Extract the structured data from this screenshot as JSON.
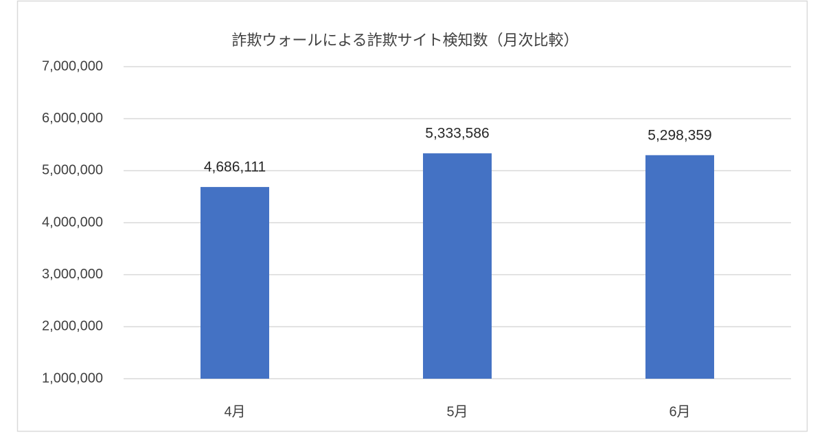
{
  "chart_data": {
    "type": "bar",
    "title": "詐欺ウォールによる詐欺サイト検知数（月次比較）",
    "categories": [
      "4月",
      "5月",
      "6月"
    ],
    "values": [
      4686111,
      5333586,
      5298359
    ],
    "value_labels": [
      "4,686,111",
      "5,333,586",
      "5,298,359"
    ],
    "color": "#4472c4",
    "ylim": [
      1000000,
      7000000
    ],
    "yticks": [
      {
        "value": 1000000,
        "label": "1,000,000"
      },
      {
        "value": 2000000,
        "label": "2,000,000"
      },
      {
        "value": 3000000,
        "label": "3,000,000"
      },
      {
        "value": 4000000,
        "label": "4,000,000"
      },
      {
        "value": 5000000,
        "label": "5,000,000"
      },
      {
        "value": 6000000,
        "label": "6,000,000"
      },
      {
        "value": 7000000,
        "label": "7,000,000"
      }
    ],
    "grid": true
  }
}
